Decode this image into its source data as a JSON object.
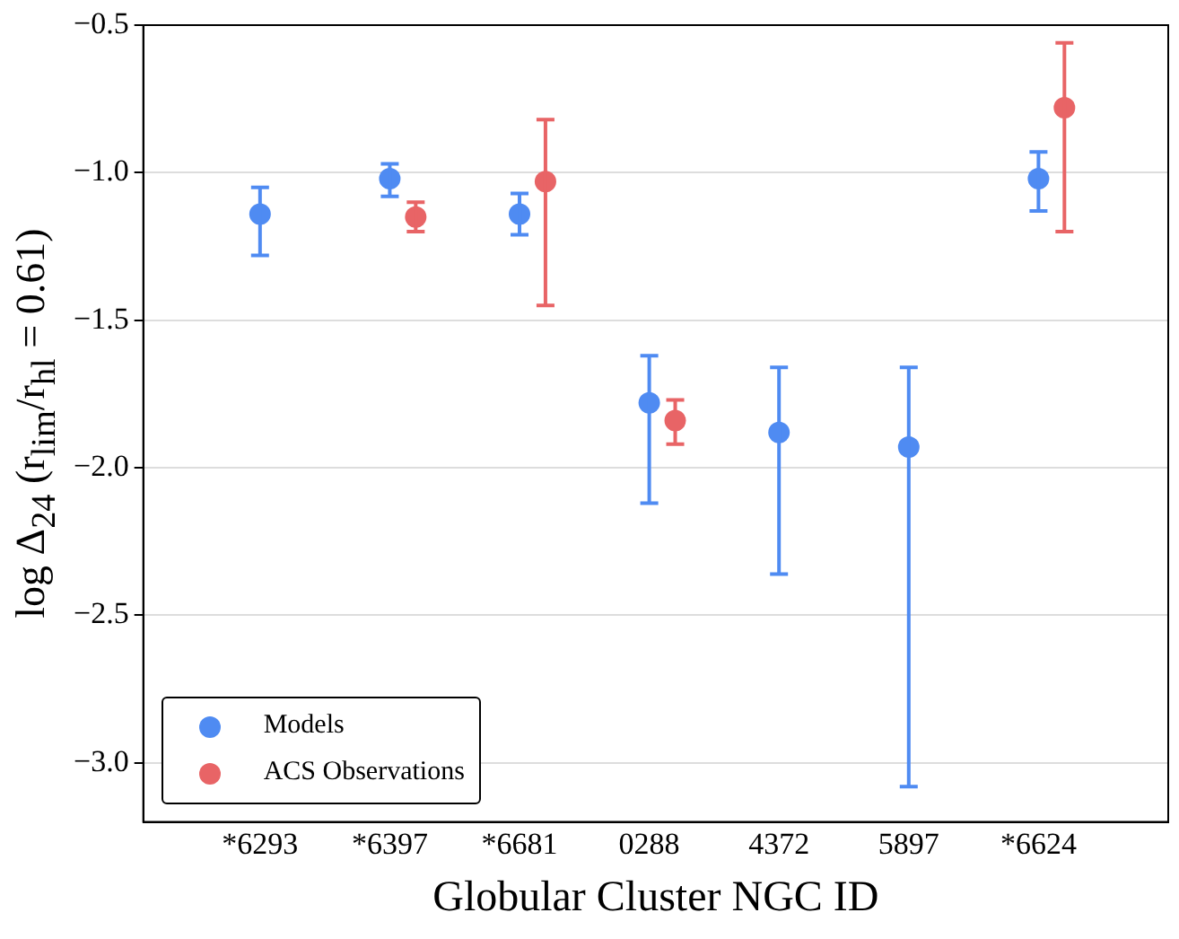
{
  "chart_data": {
    "type": "scatter",
    "ylabel": "log Δ$_{24}$ (r$_{lim}$/r$_{hl}$ = 0.61)",
    "xlabel": "Globular Cluster NGC ID",
    "categories": [
      "*6293",
      "*6397",
      "*6681",
      "0288",
      "4372",
      "5897",
      "*6624"
    ],
    "ylim": [
      -3.2,
      -0.5
    ],
    "yticks": [
      {
        "value": -0.5,
        "label": "−0.5"
      },
      {
        "value": -1.0,
        "label": "−1.0"
      },
      {
        "value": -1.5,
        "label": "−1.5"
      },
      {
        "value": -2.0,
        "label": "−2.0"
      },
      {
        "value": -2.5,
        "label": "−2.5"
      },
      {
        "value": -3.0,
        "label": "−3.0"
      }
    ],
    "grid": "y",
    "legend": "bottom left",
    "marker": "circle",
    "series": [
      {
        "name": "Models",
        "color": "#4f8bf2",
        "values": [
          -1.14,
          -1.02,
          -1.14,
          -1.78,
          -1.88,
          -1.93,
          -1.02
        ],
        "errors": [
          [
            -1.28,
            -1.05
          ],
          [
            -1.08,
            -0.97
          ],
          [
            -1.21,
            -1.07
          ],
          [
            -2.12,
            -1.62
          ],
          [
            -2.36,
            -1.66
          ],
          [
            -3.08,
            -1.66
          ],
          [
            -1.13,
            -0.93
          ]
        ]
      },
      {
        "name": "ACS Observations",
        "color": "#e86466",
        "values": [
          null,
          -1.15,
          -1.03,
          -1.84,
          null,
          null,
          -0.78
        ],
        "errors": [
          null,
          [
            -1.2,
            -1.1
          ],
          [
            -1.45,
            -0.82
          ],
          [
            -1.92,
            -1.77
          ],
          null,
          null,
          [
            -1.2,
            -0.56
          ]
        ]
      }
    ]
  }
}
